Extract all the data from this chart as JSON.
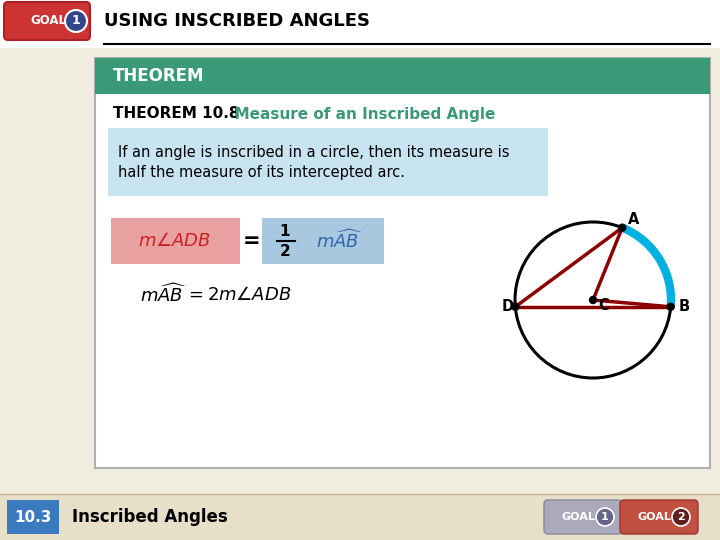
{
  "title": "USING INSCRIBED ANGLES",
  "goal_label": "GOAL",
  "goal_num": "1",
  "theorem_header": "THEOREM",
  "theorem_title_bold": "THEOREM 10.8",
  "theorem_title_color": "  Measure of an Inscribed Angle",
  "theorem_body1": "If an angle is inscribed in a circle, then its measure is",
  "theorem_body2": "half the measure of its intercepted arc.",
  "footer_num": "10.3",
  "footer_text": "Inscribed Angles",
  "bg_color": "#f0ece0",
  "theorem_header_bg": "#3a9a78",
  "theorem_body_bg": "#c8e4f0",
  "goal_badge_bg": "#cc3333",
  "footer_bg": "#e8dfc8",
  "footer_num_bg": "#3a7abf",
  "arc_color": "#00b0e0",
  "line_color": "#8b0000",
  "red_box_color": "#e8a0a0",
  "blue_box_color": "#a8c8e0",
  "teal_color": "#3a9a78"
}
